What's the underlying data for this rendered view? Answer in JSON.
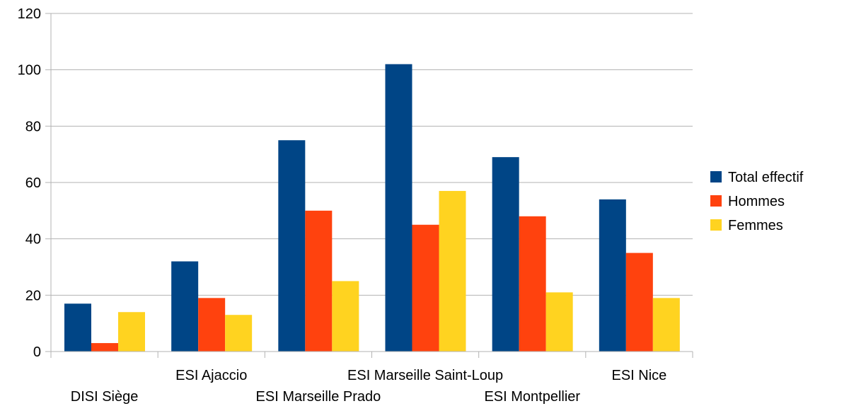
{
  "chart_data": {
    "type": "bar",
    "title": "",
    "xlabel": "",
    "ylabel": "",
    "ylim": [
      0,
      120
    ],
    "yticks": [
      0,
      20,
      40,
      60,
      80,
      100,
      120
    ],
    "grid": true,
    "legend_position": "right",
    "categories": [
      "DISI Siège",
      "ESI Ajaccio",
      "ESI Marseille Prado",
      "ESI Marseille Saint-Loup",
      "ESI Montpellier",
      "ESI Nice"
    ],
    "series": [
      {
        "name": "Total effectif",
        "color": "#004586",
        "values": [
          17,
          32,
          75,
          102,
          69,
          54
        ]
      },
      {
        "name": "Hommes",
        "color": "#ff420e",
        "values": [
          3,
          19,
          50,
          45,
          48,
          35
        ]
      },
      {
        "name": "Femmes",
        "color": "#ffd320",
        "values": [
          14,
          13,
          25,
          57,
          21,
          19
        ]
      }
    ]
  }
}
